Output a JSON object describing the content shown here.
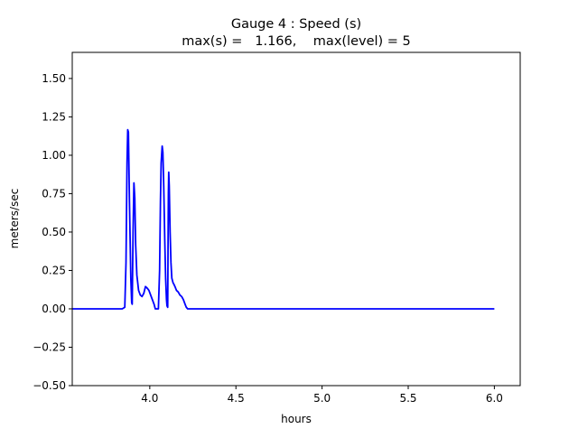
{
  "chart_data": {
    "type": "line",
    "title": "Gauge 4 : Speed (s)",
    "subtitle": "max(s) =   1.166,    max(level) = 5",
    "xlabel": "hours",
    "ylabel": "meters/sec",
    "xlim": [
      3.55,
      6.15
    ],
    "ylim": [
      -0.5,
      1.67
    ],
    "xticks": [
      4.0,
      4.5,
      5.0,
      5.5,
      6.0
    ],
    "xtick_labels": [
      "4.0",
      "4.5",
      "5.0",
      "5.5",
      "6.0"
    ],
    "yticks": [
      -0.5,
      -0.25,
      0.0,
      0.25,
      0.5,
      0.75,
      1.0,
      1.25,
      1.5
    ],
    "ytick_labels": [
      "−0.50",
      "−0.25",
      "0.00",
      "0.25",
      "0.50",
      "0.75",
      "1.00",
      "1.25",
      "1.50"
    ],
    "grid": false,
    "series": [
      {
        "color": "#0000ff",
        "x": [
          3.55,
          3.84,
          3.855,
          3.862,
          3.868,
          3.872,
          3.876,
          3.882,
          3.89,
          3.895,
          3.898,
          3.903,
          3.908,
          3.913,
          3.918,
          3.925,
          3.935,
          3.945,
          3.955,
          3.965,
          3.975,
          3.985,
          3.995,
          4.005,
          4.015,
          4.025,
          4.032,
          4.04,
          4.05,
          4.057,
          4.062,
          4.066,
          4.072,
          4.076,
          4.081,
          4.087,
          4.092,
          4.097,
          4.1,
          4.104,
          4.106,
          4.108,
          4.11,
          4.113,
          4.118,
          4.123,
          4.128,
          4.135,
          4.14,
          4.148,
          4.155,
          4.165,
          4.175,
          4.185,
          4.195,
          4.205,
          4.212,
          4.22,
          4.23,
          4.5,
          5.0,
          5.5,
          6.0
        ],
        "y": [
          0.0,
          0.0,
          0.01,
          0.3,
          0.95,
          1.166,
          1.15,
          0.7,
          0.2,
          0.04,
          0.03,
          0.5,
          0.82,
          0.72,
          0.42,
          0.22,
          0.12,
          0.09,
          0.08,
          0.1,
          0.145,
          0.135,
          0.12,
          0.09,
          0.06,
          0.03,
          0.0,
          0.0,
          0.0,
          0.25,
          0.7,
          0.95,
          1.06,
          1.02,
          0.8,
          0.45,
          0.2,
          0.06,
          0.02,
          0.01,
          0.4,
          0.75,
          0.89,
          0.8,
          0.5,
          0.3,
          0.2,
          0.17,
          0.16,
          0.14,
          0.12,
          0.11,
          0.09,
          0.08,
          0.06,
          0.03,
          0.01,
          0.0,
          0.0,
          0.0,
          0.0,
          0.0,
          0.0
        ]
      }
    ]
  }
}
